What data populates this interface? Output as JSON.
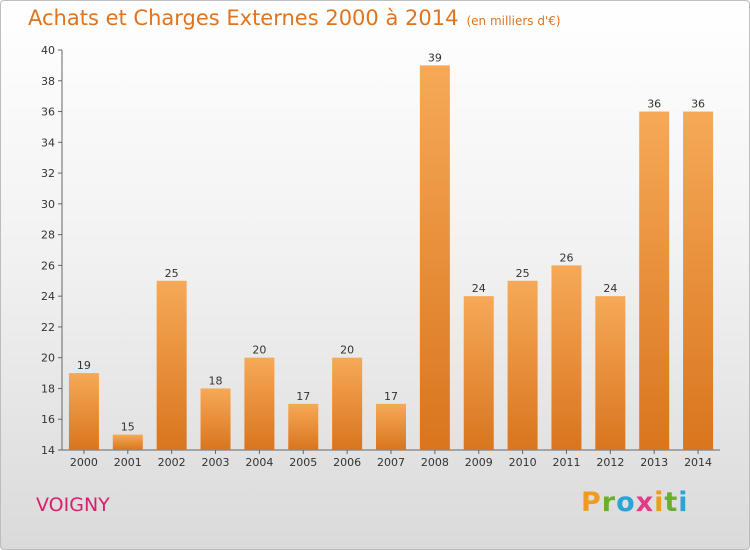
{
  "header": {
    "title": "Achats et Charges Externes 2000 à 2014",
    "subtitle": "(en milliers d'€)"
  },
  "footer": {
    "town": "VOIGNY",
    "logo": {
      "letters": [
        "P",
        "r",
        "o",
        "x",
        "i",
        "t",
        "i"
      ],
      "colors": [
        "#f29a1f",
        "#6aae2f",
        "#2aa3d8",
        "#e23b8a",
        "#f29a1f",
        "#6aae2f",
        "#2aa3d8"
      ]
    }
  },
  "colors": {
    "bar_light": "#f6a957",
    "bar_dark": "#d9751e",
    "title": "#e0741e",
    "town": "#d81e6d"
  },
  "chart_data": {
    "type": "bar",
    "categories": [
      "2000",
      "2001",
      "2002",
      "2003",
      "2004",
      "2005",
      "2006",
      "2007",
      "2008",
      "2009",
      "2010",
      "2011",
      "2012",
      "2013",
      "2014"
    ],
    "values": [
      19,
      15,
      25,
      18,
      20,
      17,
      20,
      17,
      39,
      24,
      25,
      26,
      24,
      36,
      36
    ],
    "data_labels": [
      "19",
      "15",
      "25",
      "18",
      "20",
      "17",
      "20",
      "17",
      "39",
      "24",
      "25",
      "26",
      "24",
      "36",
      "36"
    ],
    "title": "Achats et Charges Externes 2000 à 2014",
    "subtitle": "(en milliers d'€)",
    "ylim": [
      14,
      40
    ],
    "yticks": [
      "14",
      "16",
      "18",
      "20",
      "22",
      "24",
      "26",
      "28",
      "30",
      "32",
      "34",
      "36",
      "38",
      "40"
    ],
    "grid": false,
    "legend": "none"
  }
}
